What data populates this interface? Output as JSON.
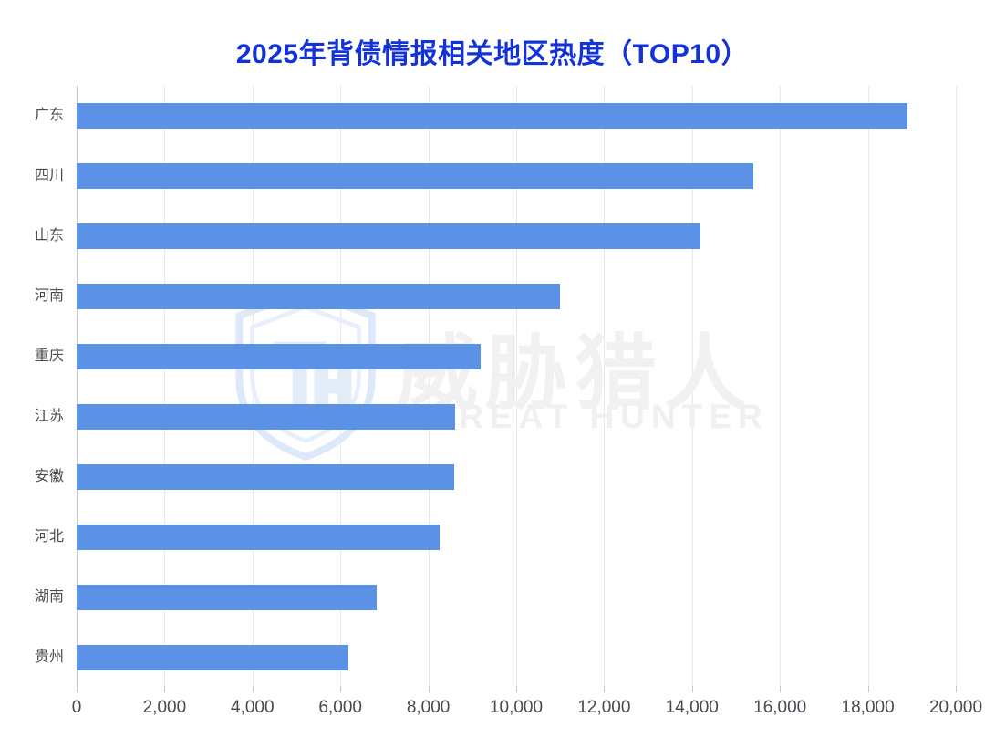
{
  "title": "2025年背债情报相关地区热度（TOP10）",
  "watermark": {
    "cn": "威胁猎人",
    "en": "THREAT HUNTER",
    "logo": "threat-hunter-shield-logo"
  },
  "colors": {
    "title": "#1433d6",
    "bar": "#5b92e5",
    "gridline": "#e9e9e9",
    "axis_line": "#bfc5cc",
    "tick_label": "#464b50",
    "category_label": "#4b4b4e",
    "watermark_text": "#f1f1f1",
    "watermark_logo": "#e9f0fb"
  },
  "chart_data": {
    "type": "bar",
    "orientation": "horizontal",
    "title": "2025年背债情报相关地区热度（TOP10）",
    "categories": [
      "广东",
      "四川",
      "山东",
      "河南",
      "重庆",
      "江苏",
      "安徽",
      "河北",
      "湖南",
      "贵州"
    ],
    "values": [
      18900,
      15400,
      14200,
      11000,
      9200,
      8620,
      8590,
      8250,
      6820,
      6180
    ],
    "xlabel": "",
    "ylabel": "",
    "xlim": [
      0,
      20000
    ],
    "x_ticks": [
      0,
      2000,
      4000,
      6000,
      8000,
      10000,
      12000,
      14000,
      16000,
      18000,
      20000
    ],
    "x_tick_labels": [
      "0",
      "2,000",
      "4,000",
      "6,000",
      "8,000",
      "10,000",
      "12,000",
      "14,000",
      "16,000",
      "18,000",
      "20,000"
    ],
    "grid": "vertical-only",
    "legend": "none",
    "bar_color": "#5b92e5"
  }
}
